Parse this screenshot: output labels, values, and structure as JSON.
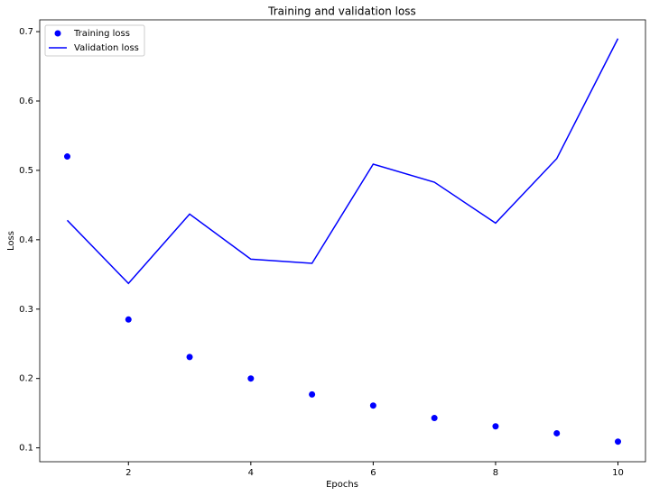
{
  "chart_data": {
    "type": "line",
    "title": "Training and validation loss",
    "x_label": "Epochs",
    "y_label": "Loss",
    "x": [
      1,
      2,
      3,
      4,
      5,
      6,
      7,
      8,
      9,
      10
    ],
    "series": [
      {
        "name": "Training loss",
        "color": "#0000ff",
        "style": "dots",
        "values": [
          0.52,
          0.285,
          0.231,
          0.2,
          0.177,
          0.161,
          0.143,
          0.131,
          0.121,
          0.109
        ]
      },
      {
        "name": "Validation loss",
        "color": "#0000ff",
        "style": "line",
        "values": [
          0.428,
          0.337,
          0.437,
          0.372,
          0.366,
          0.509,
          0.483,
          0.424,
          0.517,
          0.69
        ]
      }
    ],
    "xlim": [
      0.55,
      10.45
    ],
    "ylim": [
      0.08,
      0.717
    ],
    "xticks": [
      2,
      4,
      6,
      8,
      10
    ],
    "yticks": [
      0.1,
      0.2,
      0.3,
      0.4,
      0.5,
      0.6,
      0.7
    ],
    "legend": "upper-left"
  }
}
